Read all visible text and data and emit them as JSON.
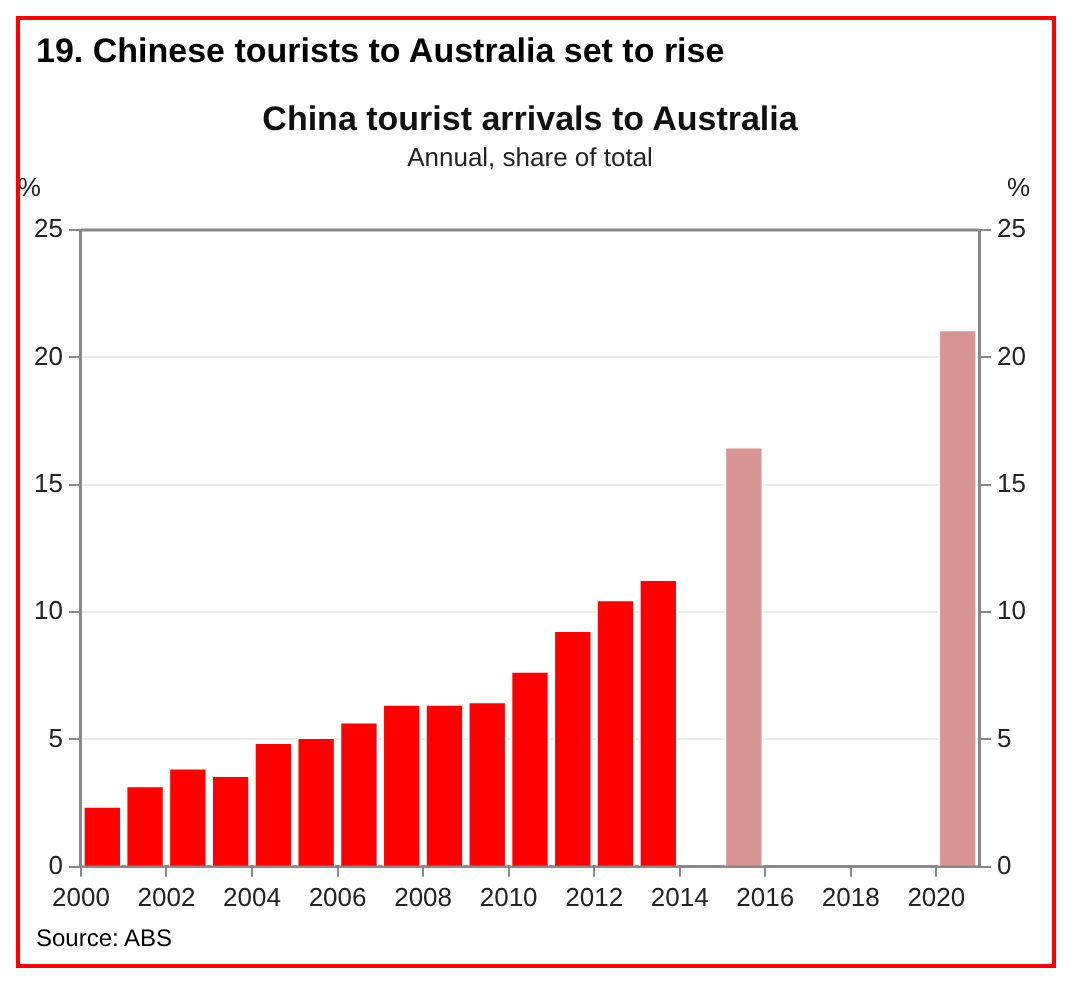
{
  "chart_data": {
    "type": "bar",
    "title": "China tourist arrivals to Australia",
    "subtitle": "Annual, share of total",
    "ylabel": "%",
    "y2label": "%",
    "annotations": [
      "19. Chinese tourists to Australia set to rise",
      "Source: ABS"
    ],
    "categories": [
      "2000",
      null,
      "2002",
      null,
      "2004",
      null,
      "2006",
      null,
      "2008",
      null,
      "2010",
      null,
      "2012",
      null,
      "2014",
      null,
      "2016",
      null,
      "2018",
      null,
      "2020"
    ],
    "values": [
      2.4,
      3.2,
      3.9,
      3.6,
      4.9,
      5.1,
      5.7,
      6.4,
      6.4,
      6.5,
      7.7,
      9.3,
      10.5,
      11.3,
      null,
      16.5,
      null,
      null,
      null,
      null,
      21.1
    ],
    "colors": [
      "#ff0000",
      "#ff0000",
      "#ff0000",
      "#ff0000",
      "#ff0000",
      "#ff0000",
      "#ff0000",
      "#ff0000",
      "#ff0000",
      "#ff0000",
      "#ff0000",
      "#ff0000",
      "#ff0000",
      "#ff0000",
      "#ff0000",
      "#d99594",
      "#d99594",
      "#d99594",
      "#d99594",
      "#d99594",
      "#d99594"
    ],
    "ylim": [
      0,
      25
    ],
    "yticks": [
      0,
      5,
      10,
      15,
      20,
      25
    ],
    "y2lim": [
      0,
      25
    ],
    "y2ticks": [
      0,
      5,
      10,
      15,
      20,
      25
    ],
    "grid": "y",
    "legend": false
  }
}
